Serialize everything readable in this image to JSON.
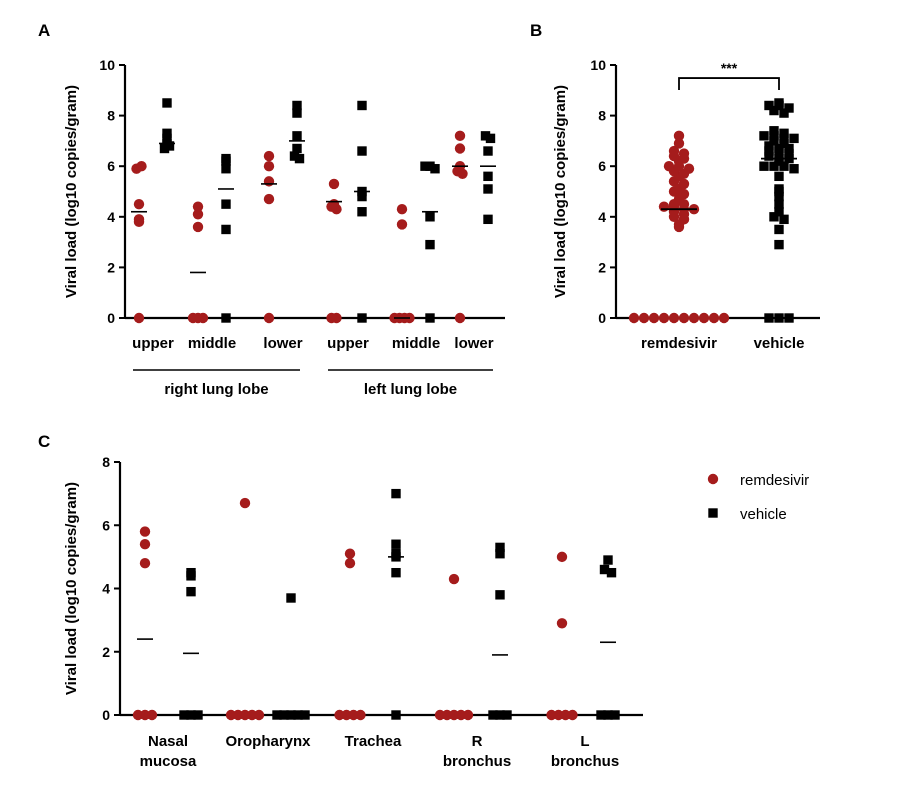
{
  "colors": {
    "remdesivir": "#a51c1c",
    "vehicle": "#000000"
  },
  "chart_data": [
    {
      "panel": "A",
      "type": "scatter",
      "ylabel": "Viral load (log10 copies/gram)",
      "ylim": [
        0,
        10
      ],
      "yticks": [
        "0",
        "2",
        "4",
        "6",
        "8",
        "10"
      ],
      "categories": [
        "upper",
        "middle",
        "lower",
        "upper",
        "middle",
        "lower"
      ],
      "groups": [
        {
          "label": "right lung lobe",
          "categories": [
            0,
            1,
            2
          ]
        },
        {
          "label": "left lung lobe",
          "categories": [
            3,
            4,
            5
          ]
        }
      ],
      "series": [
        {
          "name": "remdesivir",
          "values": [
            [
              5.9,
              6.0,
              4.5,
              3.9,
              3.8,
              0.0
            ],
            [
              4.4,
              4.1,
              3.6,
              0.0,
              0.0,
              0.0
            ],
            [
              6.4,
              6.0,
              5.4,
              4.7,
              0.0
            ],
            [
              5.3,
              4.5,
              4.4,
              4.3,
              0.0,
              0.0
            ],
            [
              4.3,
              3.7,
              0.0,
              0.0,
              0.0,
              0.0
            ],
            [
              7.2,
              6.7,
              6.0,
              5.8,
              5.7,
              0.0
            ]
          ],
          "means": [
            4.2,
            1.8,
            5.3,
            4.6,
            0.0,
            6.0
          ]
        },
        {
          "name": "vehicle",
          "values": [
            [
              8.5,
              7.3,
              7.1,
              6.9,
              6.7,
              6.8
            ],
            [
              6.3,
              6.2,
              5.9,
              4.5,
              3.5,
              0.0
            ],
            [
              8.4,
              8.1,
              7.2,
              6.7,
              6.4,
              6.3
            ],
            [
              8.4,
              6.6,
              5.0,
              4.8,
              4.2,
              0.0
            ],
            [
              6.0,
              6.0,
              5.9,
              4.0,
              2.9,
              0.0
            ],
            [
              7.2,
              7.1,
              6.6,
              5.6,
              5.1,
              3.9
            ]
          ],
          "means": [
            6.9,
            5.1,
            7.0,
            5.0,
            4.2,
            6.0
          ]
        }
      ]
    },
    {
      "panel": "B",
      "type": "scatter",
      "ylabel": "Viral load (log10 copies/gram)",
      "ylim": [
        0,
        10
      ],
      "yticks": [
        "0",
        "2",
        "4",
        "6",
        "8",
        "10"
      ],
      "categories": [
        "remdesivir",
        "vehicle"
      ],
      "significance": {
        "label": "***",
        "between": [
          0,
          1
        ],
        "y": 9.8
      },
      "series": [
        {
          "name": "remdesivir",
          "values": [
            7.2,
            6.9,
            6.6,
            6.5,
            6.4,
            6.3,
            6.2,
            6.0,
            6.0,
            5.9,
            5.8,
            5.7,
            5.6,
            5.4,
            5.3,
            5.1,
            5.0,
            4.9,
            4.7,
            4.5,
            4.5,
            4.4,
            4.4,
            4.3,
            4.3,
            4.2,
            4.1,
            4.0,
            3.9,
            3.7,
            3.6,
            0.0,
            0.0,
            0.0,
            0.0,
            0.0,
            0.0,
            0.0,
            0.0,
            0.0,
            0.0
          ],
          "median": 4.3
        },
        {
          "name": "vehicle",
          "values": [
            8.5,
            8.4,
            8.4,
            8.3,
            8.2,
            8.1,
            7.4,
            7.3,
            7.2,
            7.2,
            7.1,
            7.1,
            7.0,
            6.9,
            6.8,
            6.7,
            6.7,
            6.6,
            6.6,
            6.5,
            6.4,
            6.3,
            6.3,
            6.2,
            6.0,
            6.0,
            6.0,
            5.9,
            5.6,
            5.1,
            5.0,
            4.8,
            4.5,
            4.2,
            4.0,
            3.9,
            3.5,
            2.9,
            0.0,
            0.0,
            0.0
          ],
          "median": 6.3
        }
      ]
    },
    {
      "panel": "C",
      "type": "scatter",
      "ylabel": "Viral load (log10 copies/gram)",
      "ylim": [
        0,
        8
      ],
      "yticks": [
        "0",
        "2",
        "4",
        "6",
        "8"
      ],
      "categories": [
        "Nasal\nmucosa",
        "Oropharynx",
        "Trachea",
        "R\nbronchus",
        "L\nbronchus"
      ],
      "legend": {
        "position": "right",
        "entries": [
          "remdesivir",
          "vehicle"
        ]
      },
      "series": [
        {
          "name": "remdesivir",
          "values": [
            [
              5.8,
              5.4,
              4.8,
              0.0,
              0.0,
              0.0
            ],
            [
              6.7,
              0.0,
              0.0,
              0.0,
              0.0,
              0.0
            ],
            [
              5.1,
              4.8,
              0.0,
              0.0,
              0.0,
              0.0
            ],
            [
              4.3,
              0.0,
              0.0,
              0.0,
              0.0,
              0.0
            ],
            [
              5.0,
              2.9,
              0.0,
              0.0,
              0.0,
              0.0
            ]
          ],
          "means": [
            2.4,
            null,
            null,
            null,
            null
          ]
        },
        {
          "name": "vehicle",
          "values": [
            [
              4.5,
              4.4,
              3.9,
              0.0,
              0.0,
              0.0
            ],
            [
              3.7,
              0.0,
              0.0,
              0.0,
              0.0,
              0.0
            ],
            [
              7.0,
              5.4,
              5.1,
              5.0,
              4.5,
              0.0
            ],
            [
              5.3,
              5.1,
              3.8,
              0.0,
              0.0,
              0.0
            ],
            [
              4.9,
              4.6,
              4.5,
              0.0,
              0.0,
              0.0
            ]
          ],
          "means": [
            1.95,
            null,
            5.0,
            1.9,
            2.3
          ]
        }
      ]
    }
  ]
}
